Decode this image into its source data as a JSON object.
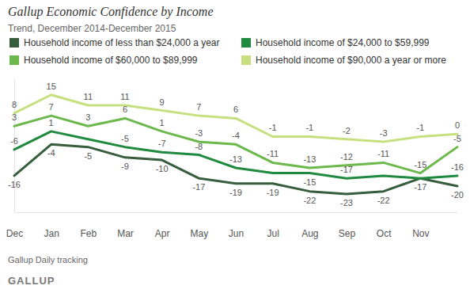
{
  "chart_data": {
    "type": "line",
    "title": "Gallup Economic Confidence by Income",
    "subtitle": "Trend, December 2014-December 2015",
    "source": "Gallup Daily tracking",
    "logo": "GALLUP",
    "categories": [
      "Dec",
      "Jan",
      "Feb",
      "Mar",
      "Apr",
      "May",
      "Jun",
      "Jul",
      "Aug",
      "Sep",
      "Oct",
      "Nov",
      null
    ],
    "series": [
      {
        "name": "Household income of less than $24,000 a year",
        "color": "#365e3c",
        "values": [
          -16,
          -4,
          -5,
          -9,
          -10,
          -17,
          -19,
          -19,
          -22,
          -23,
          -22,
          -17,
          -20
        ]
      },
      {
        "name": "Household income of $24,000 to $59,999",
        "color": "#1f8a3f",
        "values": [
          -6,
          1,
          -2,
          -5,
          -7,
          -8,
          -13,
          -15,
          -15,
          -17,
          -16,
          -17,
          -16
        ],
        "value_labels": [
          "-6",
          "1",
          null,
          "-5",
          "-7",
          "-8",
          "-13",
          null,
          "-15",
          "-17",
          null,
          null,
          "-16"
        ]
      },
      {
        "name": "Household income of $60,000 to $89,999",
        "color": "#6cb84c",
        "values": [
          3,
          7,
          3,
          6,
          1,
          -3,
          -4,
          -11,
          -13,
          -12,
          -11,
          -15,
          -5
        ]
      },
      {
        "name": "Household income of $90,000 a year or more",
        "color": "#c6e07f",
        "values": [
          8,
          15,
          11,
          11,
          9,
          7,
          6,
          -1,
          -1,
          -2,
          -3,
          -1,
          0
        ]
      }
    ],
    "ylim": [
      -30,
      21
    ],
    "data_labels": true,
    "tick_labels": "x",
    "grid": false
  }
}
